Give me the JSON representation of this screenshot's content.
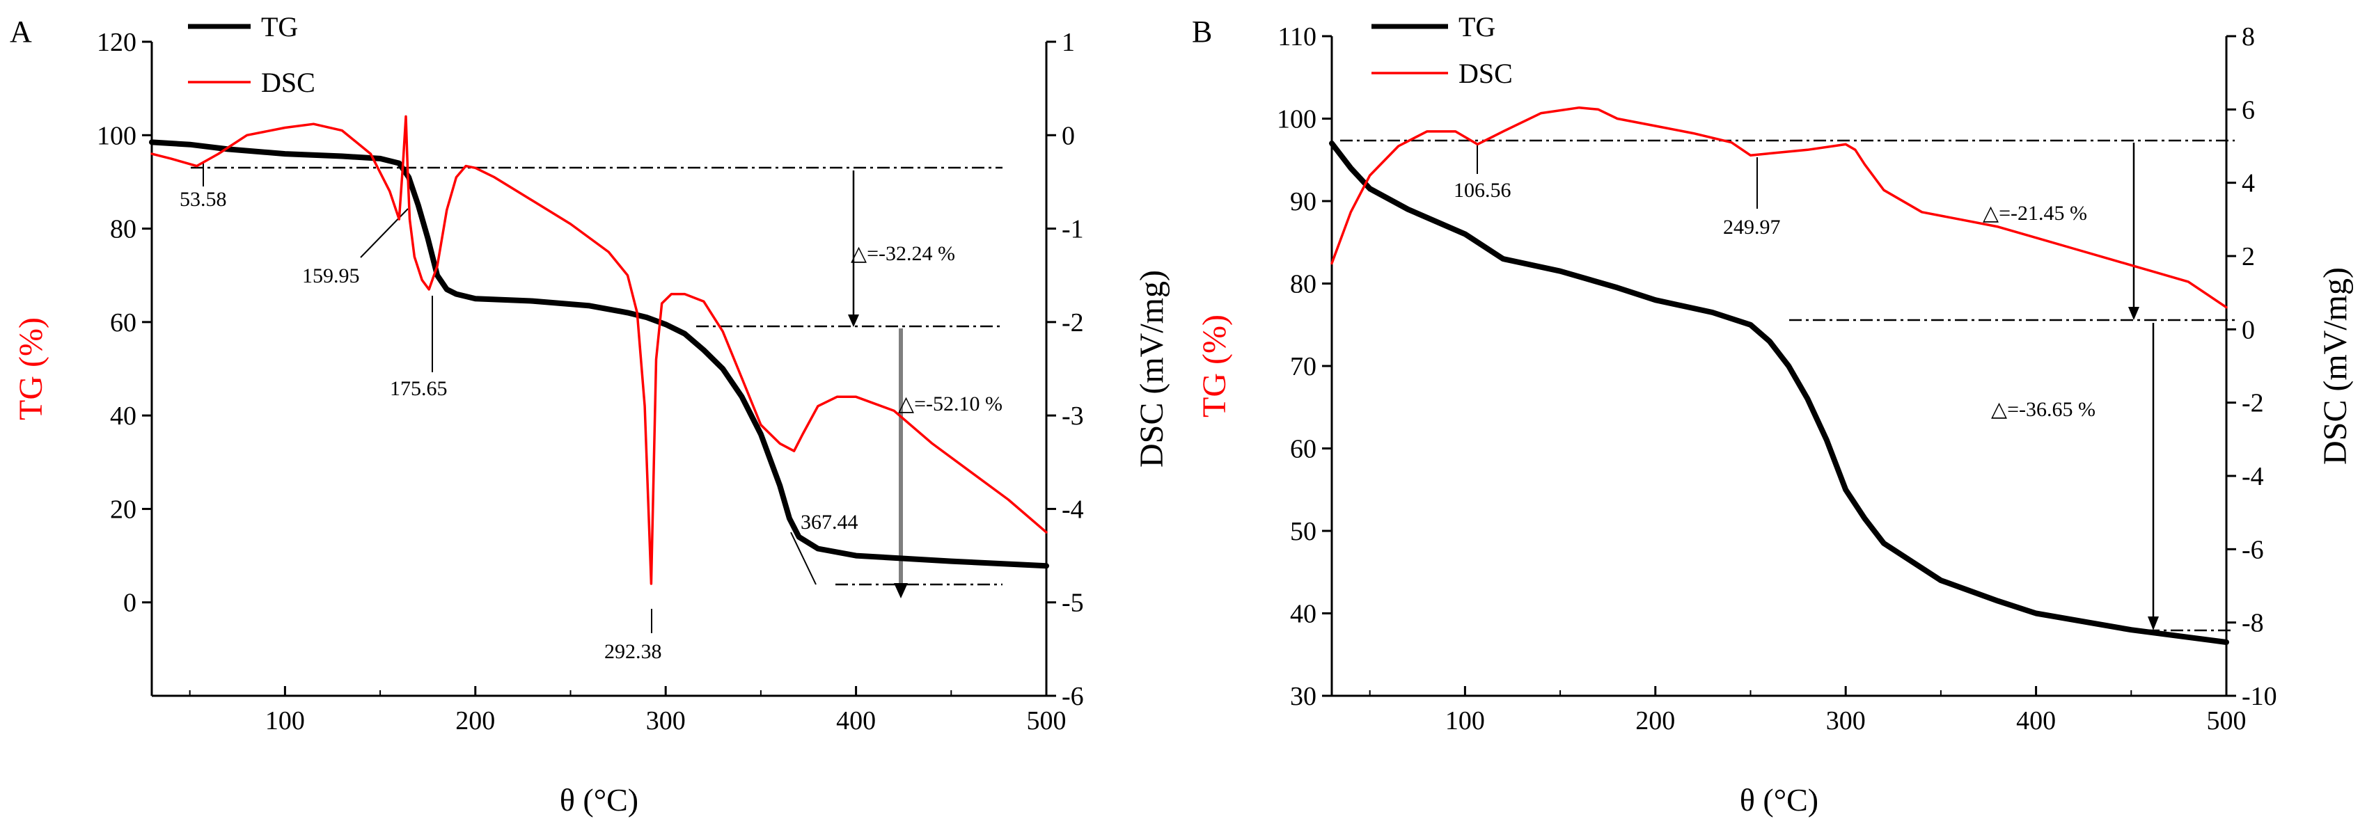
{
  "colors": {
    "tg": "#000000",
    "dsc": "#ff0000",
    "axis": "#000000",
    "guide": "#000000",
    "arrow_gray": "#7f7f7f"
  },
  "chart_data": [
    {
      "panel_label": "A",
      "type": "line",
      "xlabel": "θ (°C)",
      "ylabel_left": "TG (%)",
      "ylabel_right": "DSC (mV/mg)",
      "xlim": [
        30,
        500
      ],
      "ylim_left": [
        -20,
        120
      ],
      "ylim_right": [
        -6,
        1
      ],
      "xticks": [
        100,
        200,
        300,
        400,
        500
      ],
      "yticks_left": [
        0,
        20,
        40,
        60,
        80,
        100,
        120
      ],
      "yticks_right": [
        -6,
        -5,
        -4,
        -3,
        -2,
        -1,
        0,
        1
      ],
      "legend": [
        "TG",
        "DSC"
      ],
      "series": [
        {
          "name": "TG",
          "axis": "left",
          "x": [
            30,
            50,
            70,
            100,
            130,
            150,
            160,
            165,
            170,
            175,
            180,
            185,
            190,
            200,
            230,
            260,
            280,
            290,
            300,
            310,
            320,
            330,
            340,
            350,
            360,
            365,
            370,
            380,
            400,
            450,
            500
          ],
          "y": [
            98.5,
            98,
            97,
            96,
            95.5,
            95,
            94,
            91,
            85,
            78,
            70,
            67,
            66,
            65,
            64.5,
            63.5,
            62,
            61,
            59.5,
            57.5,
            54,
            50,
            44,
            36,
            25,
            18,
            14,
            11.5,
            10,
            8.8,
            7.8
          ]
        },
        {
          "name": "DSC",
          "axis": "right",
          "x": [
            30,
            40,
            53.58,
            65,
            80,
            100,
            115,
            130,
            145,
            155,
            159.95,
            162,
            163.5,
            164.5,
            165.5,
            168,
            172,
            175.65,
            180,
            185,
            190,
            195,
            200,
            210,
            230,
            250,
            270,
            280,
            285,
            289,
            292.38,
            295,
            298,
            303,
            310,
            320,
            330,
            340,
            350,
            360,
            367.44,
            372,
            380,
            390,
            400,
            420,
            440,
            460,
            480,
            500
          ],
          "y": [
            -0.2,
            -0.25,
            -0.33,
            -0.2,
            0.0,
            0.08,
            0.12,
            0.05,
            -0.2,
            -0.6,
            -0.9,
            -0.3,
            0.2,
            -0.4,
            -0.9,
            -1.3,
            -1.55,
            -1.65,
            -1.4,
            -0.8,
            -0.45,
            -0.33,
            -0.35,
            -0.45,
            -0.7,
            -0.95,
            -1.25,
            -1.5,
            -1.9,
            -2.9,
            -4.8,
            -2.4,
            -1.8,
            -1.7,
            -1.7,
            -1.78,
            -2.1,
            -2.6,
            -3.1,
            -3.3,
            -3.38,
            -3.2,
            -2.9,
            -2.8,
            -2.8,
            -2.95,
            -3.3,
            -3.6,
            -3.9,
            -4.25
          ]
        }
      ],
      "annotations": [
        "53.58",
        "159.95",
        "175.65",
        "292.38",
        "367.44",
        "△=-32.24 %",
        "△=-52.10 %"
      ]
    },
    {
      "panel_label": "B",
      "type": "line",
      "xlabel": "θ (°C)",
      "ylabel_left": "TG (%)",
      "ylabel_right": "DSC (mV/mg)",
      "xlim": [
        30,
        500
      ],
      "ylim_left": [
        30,
        110
      ],
      "ylim_right": [
        -10,
        8
      ],
      "xticks": [
        100,
        200,
        300,
        400,
        500
      ],
      "yticks_left": [
        30,
        40,
        50,
        60,
        70,
        80,
        90,
        100,
        110
      ],
      "yticks_right": [
        -10,
        -8,
        -6,
        -4,
        -2,
        0,
        2,
        4,
        6,
        8
      ],
      "legend": [
        "TG",
        "DSC"
      ],
      "series": [
        {
          "name": "TG",
          "axis": "left",
          "x": [
            30,
            40,
            50,
            70,
            100,
            120,
            150,
            180,
            200,
            230,
            250,
            260,
            270,
            280,
            290,
            300,
            310,
            320,
            350,
            380,
            400,
            450,
            500
          ],
          "y": [
            97,
            94,
            91.5,
            89,
            86,
            83,
            81.5,
            79.5,
            78,
            76.5,
            75,
            73,
            70,
            66,
            61,
            55,
            51.5,
            48.5,
            44,
            41.5,
            40,
            38,
            36.5
          ]
        },
        {
          "name": "DSC",
          "axis": "right",
          "x": [
            30,
            40,
            50,
            65,
            80,
            95,
            106.56,
            120,
            140,
            160,
            170,
            180,
            200,
            220,
            240,
            249.97,
            260,
            280,
            300,
            305,
            310,
            320,
            340,
            360,
            380,
            400,
            420,
            440,
            460,
            480,
            500
          ],
          "y": [
            1.8,
            3.2,
            4.2,
            5.0,
            5.4,
            5.4,
            5.05,
            5.4,
            5.9,
            6.05,
            6.0,
            5.75,
            5.55,
            5.35,
            5.1,
            4.75,
            4.8,
            4.9,
            5.05,
            4.9,
            4.5,
            3.8,
            3.2,
            3.0,
            2.8,
            2.5,
            2.2,
            1.9,
            1.6,
            1.3,
            0.6
          ]
        }
      ],
      "annotations": [
        "106.56",
        "249.97",
        "△=-21.45 %",
        "△=-36.65 %"
      ]
    }
  ]
}
